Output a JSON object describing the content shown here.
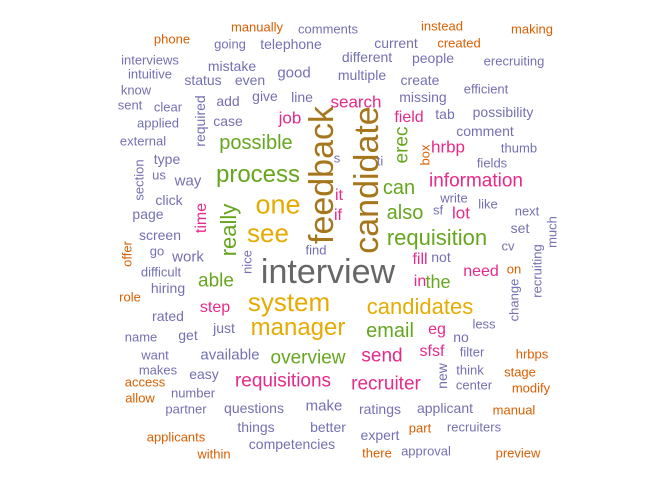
{
  "palette": {
    "orange": "#d95f02",
    "purple": "#7570b3",
    "pink": "#e7298a",
    "green": "#66a61e",
    "gold": "#e6ab02",
    "brown": "#a6761d",
    "gray": "#666666"
  },
  "words": [
    {
      "text": "interview",
      "color": "gray"
    },
    {
      "text": "feedback",
      "color": "brown"
    },
    {
      "text": "candidate",
      "color": "brown"
    },
    {
      "text": "system",
      "color": "gold"
    },
    {
      "text": "manager",
      "color": "gold"
    },
    {
      "text": "candidates",
      "color": "gold"
    },
    {
      "text": "one",
      "color": "gold"
    },
    {
      "text": "see",
      "color": "gold"
    },
    {
      "text": "process",
      "color": "green"
    },
    {
      "text": "requisition",
      "color": "green"
    },
    {
      "text": "really",
      "color": "green"
    },
    {
      "text": "possible",
      "color": "green"
    },
    {
      "text": "email",
      "color": "green"
    },
    {
      "text": "information",
      "color": "pink"
    },
    {
      "text": "requisitions",
      "color": "pink"
    },
    {
      "text": "recruiter",
      "color": "pink"
    },
    {
      "text": "also",
      "color": "green"
    },
    {
      "text": "can",
      "color": "green"
    },
    {
      "text": "overview",
      "color": "green"
    },
    {
      "text": "send",
      "color": "pink"
    },
    {
      "text": "erec",
      "color": "green"
    },
    {
      "text": "able",
      "color": "green"
    },
    {
      "text": "job",
      "color": "pink"
    },
    {
      "text": "search",
      "color": "pink"
    },
    {
      "text": "hrbp",
      "color": "pink"
    },
    {
      "text": "field",
      "color": "pink"
    },
    {
      "text": "lot",
      "color": "pink"
    },
    {
      "text": "sfsf",
      "color": "pink"
    },
    {
      "text": "step",
      "color": "pink"
    },
    {
      "text": "need",
      "color": "pink"
    },
    {
      "text": "the",
      "color": "green"
    },
    {
      "text": "time",
      "color": "pink"
    },
    {
      "text": "fill",
      "color": "pink"
    },
    {
      "text": "in",
      "color": "pink"
    },
    {
      "text": "eg",
      "color": "pink"
    },
    {
      "text": "it",
      "color": "pink"
    },
    {
      "text": "if",
      "color": "pink"
    },
    {
      "text": "good",
      "color": "purple"
    },
    {
      "text": "work",
      "color": "purple"
    },
    {
      "text": "way",
      "color": "purple"
    },
    {
      "text": "required",
      "color": "purple"
    },
    {
      "text": "case",
      "color": "purple"
    },
    {
      "text": "give",
      "color": "purple"
    },
    {
      "text": "add",
      "color": "purple"
    },
    {
      "text": "line",
      "color": "purple"
    },
    {
      "text": "make",
      "color": "purple"
    },
    {
      "text": "questions",
      "color": "purple"
    },
    {
      "text": "available",
      "color": "purple"
    },
    {
      "text": "ratings",
      "color": "purple"
    },
    {
      "text": "applicant",
      "color": "purple"
    },
    {
      "text": "competencies",
      "color": "purple"
    },
    {
      "text": "things",
      "color": "purple"
    },
    {
      "text": "better",
      "color": "purple"
    },
    {
      "text": "comment",
      "color": "purple"
    },
    {
      "text": "possibility",
      "color": "purple"
    },
    {
      "text": "missing",
      "color": "purple"
    },
    {
      "text": "multiple",
      "color": "purple"
    },
    {
      "text": "different",
      "color": "purple"
    },
    {
      "text": "people",
      "color": "purple"
    },
    {
      "text": "current",
      "color": "purple"
    },
    {
      "text": "telephone",
      "color": "purple"
    },
    {
      "text": "comments",
      "color": "purple"
    },
    {
      "text": "going",
      "color": "purple"
    },
    {
      "text": "mistake",
      "color": "purple"
    },
    {
      "text": "status",
      "color": "purple"
    },
    {
      "text": "even",
      "color": "purple"
    },
    {
      "text": "create",
      "color": "purple"
    },
    {
      "text": "efficient",
      "color": "purple"
    },
    {
      "text": "erecruiting",
      "color": "purple"
    },
    {
      "text": "tab",
      "color": "purple"
    },
    {
      "text": "thumb",
      "color": "purple"
    },
    {
      "text": "fields",
      "color": "purple"
    },
    {
      "text": "write",
      "color": "purple"
    },
    {
      "text": "like",
      "color": "purple"
    },
    {
      "text": "next",
      "color": "purple"
    },
    {
      "text": "set",
      "color": "purple"
    },
    {
      "text": "cv",
      "color": "purple"
    },
    {
      "text": "much",
      "color": "purple"
    },
    {
      "text": "recruiting",
      "color": "purple"
    },
    {
      "text": "change",
      "color": "purple"
    },
    {
      "text": "less",
      "color": "purple"
    },
    {
      "text": "filter",
      "color": "purple"
    },
    {
      "text": "think",
      "color": "purple"
    },
    {
      "text": "center",
      "color": "purple"
    },
    {
      "text": "new",
      "color": "purple"
    },
    {
      "text": "no",
      "color": "purple"
    },
    {
      "text": "not",
      "color": "purple"
    },
    {
      "text": "sf",
      "color": "purple"
    },
    {
      "text": "ti",
      "color": "purple"
    },
    {
      "text": "s",
      "color": "purple"
    },
    {
      "text": "find",
      "color": "purple"
    },
    {
      "text": "nice",
      "color": "purple"
    },
    {
      "text": "just",
      "color": "purple"
    },
    {
      "text": "get",
      "color": "purple"
    },
    {
      "text": "rated",
      "color": "purple"
    },
    {
      "text": "hiring",
      "color": "purple"
    },
    {
      "text": "difficult",
      "color": "purple"
    },
    {
      "text": "go",
      "color": "purple"
    },
    {
      "text": "screen",
      "color": "purple"
    },
    {
      "text": "page",
      "color": "purple"
    },
    {
      "text": "click",
      "color": "purple"
    },
    {
      "text": "section",
      "color": "purple"
    },
    {
      "text": "type",
      "color": "purple"
    },
    {
      "text": "external",
      "color": "purple"
    },
    {
      "text": "applied",
      "color": "purple"
    },
    {
      "text": "clear",
      "color": "purple"
    },
    {
      "text": "sent",
      "color": "purple"
    },
    {
      "text": "know",
      "color": "purple"
    },
    {
      "text": "intuitive",
      "color": "purple"
    },
    {
      "text": "interviews",
      "color": "purple"
    },
    {
      "text": "name",
      "color": "purple"
    },
    {
      "text": "want",
      "color": "purple"
    },
    {
      "text": "makes",
      "color": "purple"
    },
    {
      "text": "easy",
      "color": "purple"
    },
    {
      "text": "number",
      "color": "purple"
    },
    {
      "text": "partner",
      "color": "purple"
    },
    {
      "text": "expert",
      "color": "purple"
    },
    {
      "text": "approval",
      "color": "purple"
    },
    {
      "text": "recruiters",
      "color": "purple"
    },
    {
      "text": "us",
      "color": "purple"
    },
    {
      "text": "phone",
      "color": "orange"
    },
    {
      "text": "manually",
      "color": "orange"
    },
    {
      "text": "instead",
      "color": "orange"
    },
    {
      "text": "created",
      "color": "orange"
    },
    {
      "text": "making",
      "color": "orange"
    },
    {
      "text": "offer",
      "color": "orange"
    },
    {
      "text": "role",
      "color": "orange"
    },
    {
      "text": "access",
      "color": "orange"
    },
    {
      "text": "allow",
      "color": "orange"
    },
    {
      "text": "applicants",
      "color": "orange"
    },
    {
      "text": "within",
      "color": "orange"
    },
    {
      "text": "there",
      "color": "orange"
    },
    {
      "text": "part",
      "color": "orange"
    },
    {
      "text": "preview",
      "color": "orange"
    },
    {
      "text": "manual",
      "color": "orange"
    },
    {
      "text": "modify",
      "color": "orange"
    },
    {
      "text": "stage",
      "color": "orange"
    },
    {
      "text": "hrbps",
      "color": "orange"
    },
    {
      "text": "on",
      "color": "orange"
    },
    {
      "text": "box",
      "color": "orange"
    }
  ]
}
